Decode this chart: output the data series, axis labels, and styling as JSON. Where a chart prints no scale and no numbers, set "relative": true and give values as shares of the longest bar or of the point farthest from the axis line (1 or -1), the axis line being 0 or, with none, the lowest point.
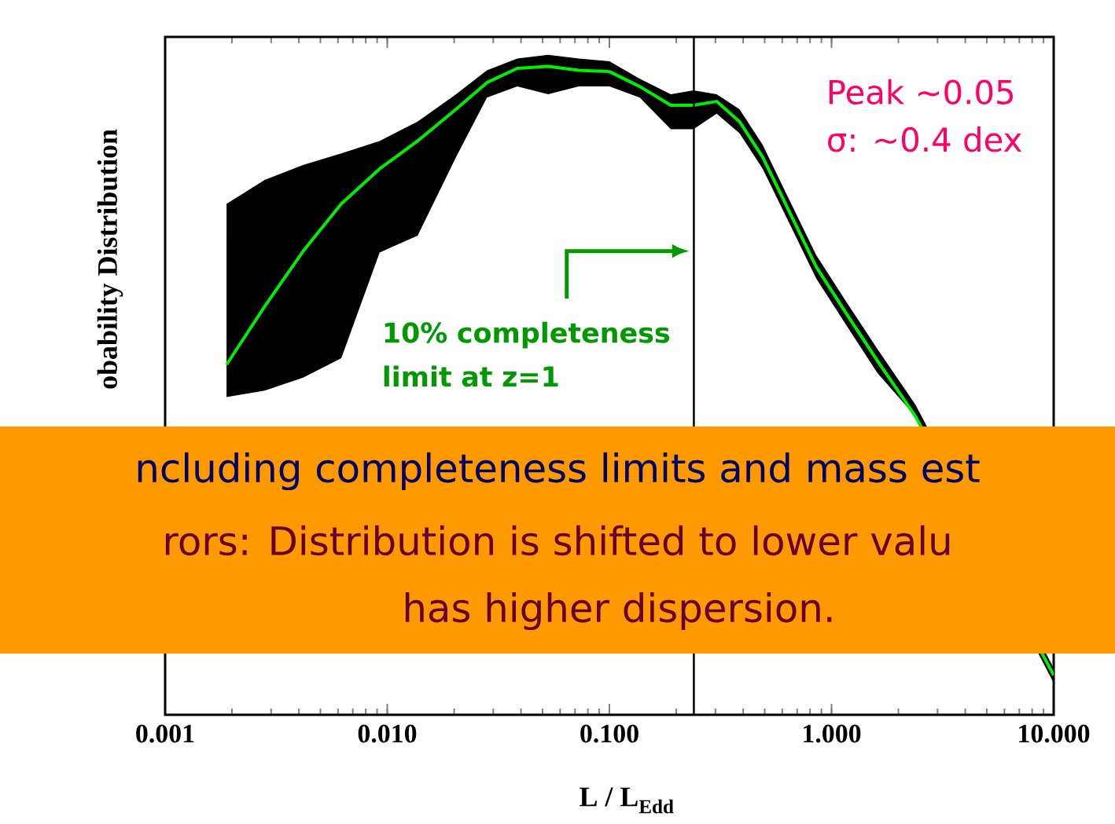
{
  "chart_data": {
    "type": "line",
    "relative": true,
    "log": "x",
    "ylabel": "obability Distribution",
    "xlabel": "L / L$_{Edd}$",
    "xlim": [
      0.001,
      10
    ],
    "xticks": [
      0.001,
      {
        "value": 0.01,
        "label": "0.010"
      },
      {
        "value": 0.1,
        "label": "0.100"
      },
      {
        "value": 1,
        "label": "1.000"
      },
      {
        "value": 10,
        "label": "10.000"
      }
    ],
    "series": [
      {
        "color": "#00ee00",
        "x": [
          0.00189,
          0.00281,
          0.00418,
          0.00621,
          0.00924,
          0.0137,
          0.0204,
          0.0281,
          0.0385,
          0.053,
          0.0728,
          0.1,
          0.137,
          0.189,
          0.239,
          0.304,
          0.385,
          0.49,
          0.621,
          0.853,
          1.17,
          1.61,
          2.39,
          10
        ],
        "values": [
          0.54,
          0.63,
          0.715,
          0.788,
          0.842,
          0.885,
          0.934,
          0.975,
          0.997,
          1,
          0.994,
          0.992,
          0.969,
          0.94,
          0.94,
          0.946,
          0.915,
          0.86,
          0.788,
          0.691,
          0.618,
          0.546,
          0.46,
          0.061
        ],
        "upper": [
          0.788,
          0.825,
          0.848,
          0.866,
          0.885,
          0.915,
          0.957,
          0.994,
          1.012,
          1.018,
          1.012,
          1.008,
          0.981,
          0.957,
          0.963,
          0.957,
          0.934,
          0.879,
          0.806,
          0.709,
          0.636,
          0.564,
          0.478,
          0.072
        ],
        "lower": [
          0.49,
          0.5,
          0.52,
          0.55,
          0.713,
          0.739,
          0.86,
          0.952,
          0.969,
          0.957,
          0.969,
          0.969,
          0.952,
          0.903,
          0.903,
          0.927,
          0.897,
          0.842,
          0.77,
          0.673,
          0.6,
          0.527,
          0.46,
          0.049
        ]
      }
    ],
    "ref_lines": [
      {
        "axis": "x",
        "value": 0.24,
        "color": "#000000"
      }
    ],
    "annotations": [
      "Peak ~0.05",
      "σ: ~0.4 dex",
      "10% completeness limit at z=1",
      "ncluding completeness limits and  mass est",
      "rors: Distribution is shifted to lower valu",
      "has higher dispersion."
    ]
  }
}
